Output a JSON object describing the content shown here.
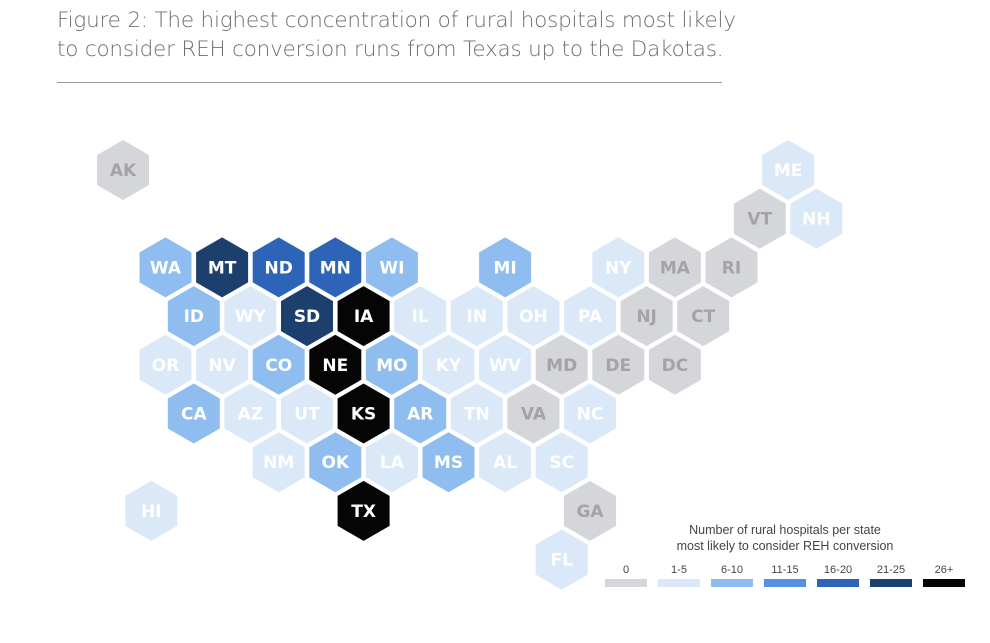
{
  "figure": {
    "title_line1": "Figure 2: The highest concentration of rural hospitals most likely",
    "title_line2": "to consider REH conversion runs from Texas up to the Dakotas."
  },
  "legend": {
    "title_line1": "Number of rural hospitals per state",
    "title_line2": "most likely to consider REH conversion",
    "items": [
      {
        "label": "0",
        "bin": "0"
      },
      {
        "label": "1-5",
        "bin": "1-5"
      },
      {
        "label": "6-10",
        "bin": "6-10"
      },
      {
        "label": "11-15",
        "bin": "11-15"
      },
      {
        "label": "16-20",
        "bin": "16-20"
      },
      {
        "label": "21-25",
        "bin": "21-25"
      },
      {
        "label": "26+",
        "bin": "26+"
      }
    ]
  },
  "colors": {
    "0": "#d4d6d9",
    "1-5": "#dae8f8",
    "6-10": "#8fbdf0",
    "11-15": "#5590e2",
    "16-20": "#2d64b8",
    "21-25": "#1c3f6e",
    "26+": "#050505",
    "label_on_zero": "#a4a4a4",
    "label_on_light": "#ffffff"
  },
  "chart_data": {
    "type": "hex-tile-map",
    "states": [
      {
        "abbr": "AK",
        "bin": "0",
        "row": 0,
        "col": 0
      },
      {
        "abbr": "ME",
        "bin": "1-5",
        "row": 0,
        "col": 11
      },
      {
        "abbr": "VT",
        "bin": "0",
        "row": 1,
        "col": 10
      },
      {
        "abbr": "NH",
        "bin": "1-5",
        "row": 1,
        "col": 11
      },
      {
        "abbr": "WA",
        "bin": "6-10",
        "row": 2,
        "col": 0
      },
      {
        "abbr": "MT",
        "bin": "21-25",
        "row": 2,
        "col": 1
      },
      {
        "abbr": "ND",
        "bin": "16-20",
        "row": 2,
        "col": 2
      },
      {
        "abbr": "MN",
        "bin": "16-20",
        "row": 2,
        "col": 3
      },
      {
        "abbr": "WI",
        "bin": "6-10",
        "row": 2,
        "col": 4
      },
      {
        "abbr": "MI",
        "bin": "6-10",
        "row": 2,
        "col": 6
      },
      {
        "abbr": "NY",
        "bin": "1-5",
        "row": 2,
        "col": 8
      },
      {
        "abbr": "MA",
        "bin": "0",
        "row": 2,
        "col": 9
      },
      {
        "abbr": "RI",
        "bin": "0",
        "row": 2,
        "col": 10
      },
      {
        "abbr": "ID",
        "bin": "6-10",
        "row": 3,
        "col": 0
      },
      {
        "abbr": "WY",
        "bin": "1-5",
        "row": 3,
        "col": 1
      },
      {
        "abbr": "SD",
        "bin": "21-25",
        "row": 3,
        "col": 2
      },
      {
        "abbr": "IA",
        "bin": "26+",
        "row": 3,
        "col": 3
      },
      {
        "abbr": "IL",
        "bin": "1-5",
        "row": 3,
        "col": 4
      },
      {
        "abbr": "IN",
        "bin": "1-5",
        "row": 3,
        "col": 5
      },
      {
        "abbr": "OH",
        "bin": "1-5",
        "row": 3,
        "col": 6
      },
      {
        "abbr": "PA",
        "bin": "1-5",
        "row": 3,
        "col": 7
      },
      {
        "abbr": "NJ",
        "bin": "0",
        "row": 3,
        "col": 8
      },
      {
        "abbr": "CT",
        "bin": "0",
        "row": 3,
        "col": 9
      },
      {
        "abbr": "OR",
        "bin": "1-5",
        "row": 4,
        "col": 0
      },
      {
        "abbr": "NV",
        "bin": "1-5",
        "row": 4,
        "col": 1
      },
      {
        "abbr": "CO",
        "bin": "6-10",
        "row": 4,
        "col": 2
      },
      {
        "abbr": "NE",
        "bin": "26+",
        "row": 4,
        "col": 3
      },
      {
        "abbr": "MO",
        "bin": "6-10",
        "row": 4,
        "col": 4
      },
      {
        "abbr": "KY",
        "bin": "1-5",
        "row": 4,
        "col": 5
      },
      {
        "abbr": "WV",
        "bin": "1-5",
        "row": 4,
        "col": 6
      },
      {
        "abbr": "MD",
        "bin": "0",
        "row": 4,
        "col": 7
      },
      {
        "abbr": "DE",
        "bin": "0",
        "row": 4,
        "col": 8
      },
      {
        "abbr": "DC",
        "bin": "0",
        "row": 4,
        "col": 9
      },
      {
        "abbr": "CA",
        "bin": "6-10",
        "row": 5,
        "col": 0
      },
      {
        "abbr": "AZ",
        "bin": "1-5",
        "row": 5,
        "col": 1
      },
      {
        "abbr": "UT",
        "bin": "1-5",
        "row": 5,
        "col": 2
      },
      {
        "abbr": "KS",
        "bin": "26+",
        "row": 5,
        "col": 3
      },
      {
        "abbr": "AR",
        "bin": "6-10",
        "row": 5,
        "col": 4
      },
      {
        "abbr": "TN",
        "bin": "1-5",
        "row": 5,
        "col": 5
      },
      {
        "abbr": "VA",
        "bin": "0",
        "row": 5,
        "col": 6
      },
      {
        "abbr": "NC",
        "bin": "1-5",
        "row": 5,
        "col": 7
      },
      {
        "abbr": "NM",
        "bin": "1-5",
        "row": 6,
        "col": 2
      },
      {
        "abbr": "OK",
        "bin": "6-10",
        "row": 6,
        "col": 3
      },
      {
        "abbr": "LA",
        "bin": "1-5",
        "row": 6,
        "col": 4
      },
      {
        "abbr": "MS",
        "bin": "6-10",
        "row": 6,
        "col": 5
      },
      {
        "abbr": "AL",
        "bin": "1-5",
        "row": 6,
        "col": 6
      },
      {
        "abbr": "SC",
        "bin": "1-5",
        "row": 6,
        "col": 7
      },
      {
        "abbr": "HI",
        "bin": "1-5",
        "row": 7,
        "col": 0
      },
      {
        "abbr": "TX",
        "bin": "26+",
        "row": 7,
        "col": 3
      },
      {
        "abbr": "GA",
        "bin": "0",
        "row": 7,
        "col": 7
      },
      {
        "abbr": "FL",
        "bin": "1-5",
        "row": 8,
        "col": 7
      }
    ]
  }
}
